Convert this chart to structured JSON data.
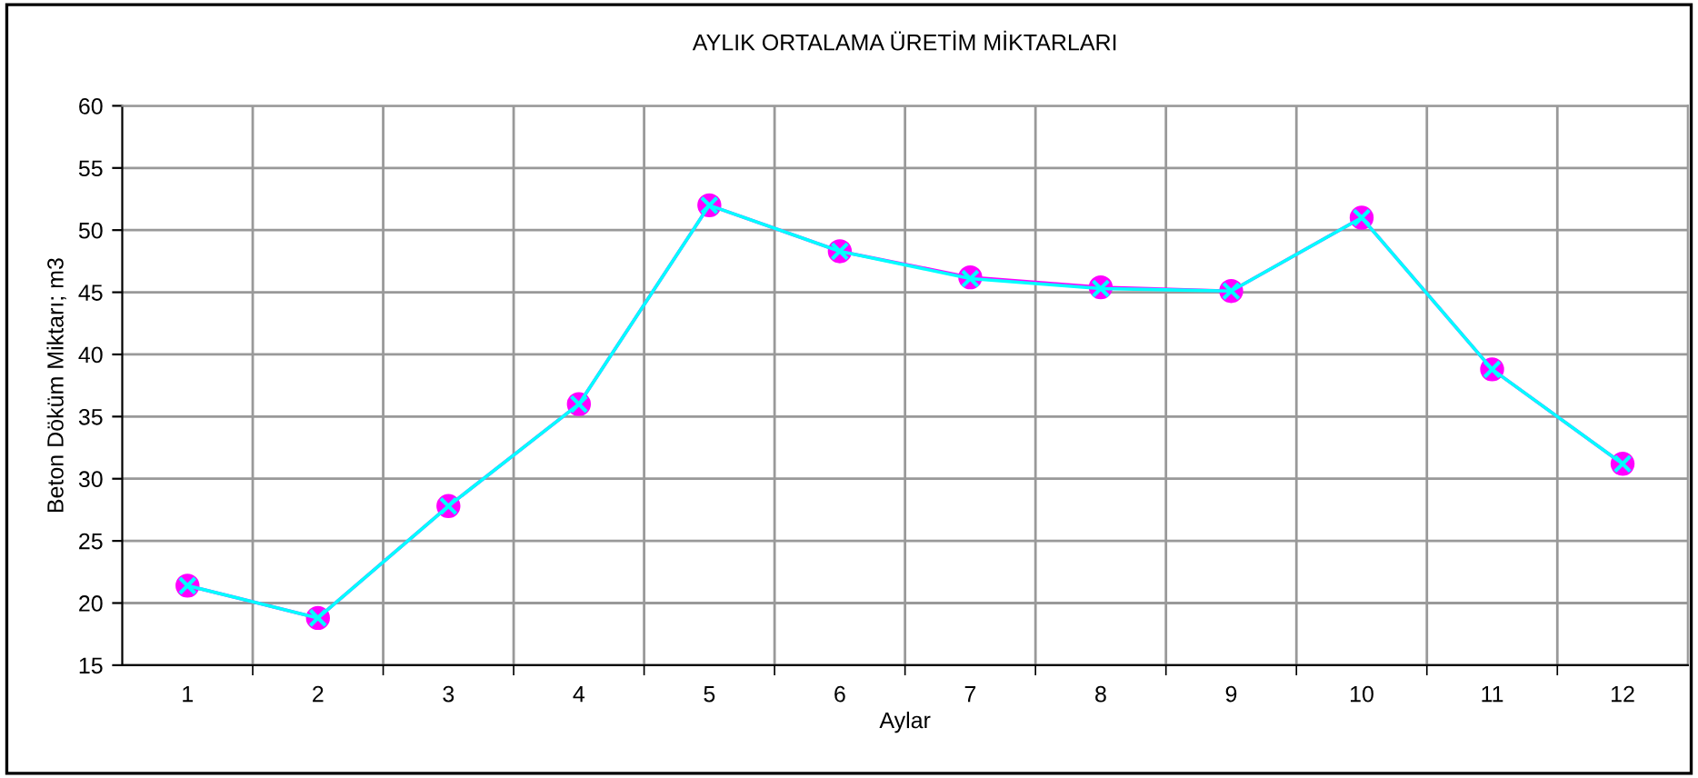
{
  "chart_data": {
    "type": "line",
    "title": "AYLIK ORTALAMA ÜRETİM MİKTARLARI",
    "xlabel": "Aylar",
    "ylabel": "Beton Döküm Miktarı; m3",
    "categories": [
      "1",
      "2",
      "3",
      "4",
      "5",
      "6",
      "7",
      "8",
      "9",
      "10",
      "11",
      "12"
    ],
    "series": [
      {
        "color": "#ff00ff",
        "marker": "circle",
        "values": [
          21.4,
          18.8,
          27.8,
          36.0,
          52.0,
          48.3,
          46.2,
          45.4,
          45.1,
          51.0,
          38.8,
          31.2
        ]
      },
      {
        "color": "#00ffff",
        "marker": "cross",
        "values": [
          21.4,
          18.8,
          27.8,
          36.0,
          52.0,
          48.3,
          46.1,
          45.3,
          45.1,
          51.0,
          38.8,
          31.2
        ]
      }
    ],
    "ylim": [
      15,
      60
    ],
    "yticks": [
      15,
      20,
      25,
      30,
      35,
      40,
      45,
      50,
      55,
      60
    ],
    "grid": true,
    "legend": false,
    "line_style": "solid"
  }
}
